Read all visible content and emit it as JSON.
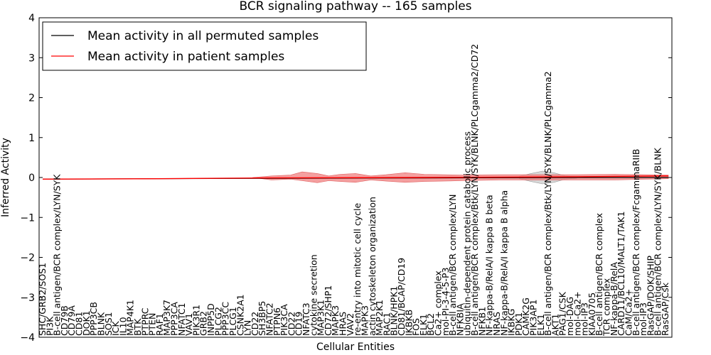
{
  "chart_data": {
    "type": "line",
    "title": "BCR signaling pathway -- 165 samples",
    "xlabel": "Cellular Entities",
    "ylabel": "Inferred Activity",
    "ylim": [
      -4,
      4
    ],
    "yticks": [
      -4,
      -3,
      -2,
      -1,
      0,
      1,
      2,
      3,
      4
    ],
    "ytick_labels": [
      "−4",
      "−3",
      "−2",
      "−1",
      "0",
      "1",
      "2",
      "3",
      "4"
    ],
    "xlim": [
      0,
      164
    ],
    "legend_position": "top-left",
    "series": [
      {
        "name": "Mean activity in all permuted samples",
        "color": "#000000",
        "values": [
          -0.04,
          -0.03,
          -0.02,
          -0.01,
          0.0,
          0.0
        ]
      },
      {
        "name": "Mean activity in patient samples",
        "color": "#ff0000",
        "values": [
          -0.04,
          -0.03,
          -0.01,
          0.0,
          0.02,
          0.04
        ]
      }
    ],
    "series_x": [
      0,
      30,
      60,
      100,
      140,
      164
    ],
    "band_patient": {
      "color": "#f08080",
      "x": [
        55,
        60,
        65,
        68,
        72,
        75,
        78,
        82,
        86,
        90,
        95,
        100,
        110,
        120,
        130,
        140,
        150,
        164
      ],
      "high": [
        0.0,
        0.04,
        0.06,
        0.14,
        0.1,
        0.04,
        0.08,
        0.1,
        0.04,
        0.07,
        0.12,
        0.08,
        0.06,
        0.07,
        0.07,
        0.07,
        0.08,
        0.06
      ],
      "low": [
        0.0,
        -0.06,
        -0.04,
        -0.08,
        -0.13,
        -0.08,
        -0.1,
        -0.12,
        -0.06,
        -0.09,
        -0.12,
        -0.1,
        -0.08,
        -0.06,
        -0.06,
        -0.06,
        -0.06,
        -0.03
      ]
    },
    "band_permuted": {
      "color": "#c8c8c8",
      "x": [
        125,
        128,
        131,
        134,
        137,
        140
      ],
      "high": [
        0.03,
        0.1,
        0.16,
        0.12,
        0.04,
        0.02
      ],
      "low": [
        -0.03,
        -0.1,
        -0.16,
        -0.12,
        -0.04,
        -0.02
      ]
    },
    "tick_labels": [
      {
        "x": 0,
        "label": "SHC/GRB2/SOS1"
      },
      {
        "x": 2,
        "label": "PI3K"
      },
      {
        "x": 4,
        "label": "B-cell antigen/BCR complex/LYN/SYK"
      },
      {
        "x": 7,
        "label": "CD79B"
      },
      {
        "x": 9,
        "label": "CD79A"
      },
      {
        "x": 11,
        "label": "CD81"
      },
      {
        "x": 13,
        "label": "DOK1"
      },
      {
        "x": 15,
        "label": "PPP3CB"
      },
      {
        "x": 17,
        "label": "BLNK"
      },
      {
        "x": 19,
        "label": "SOS1"
      },
      {
        "x": 21,
        "label": "ICK"
      },
      {
        "x": 23,
        "label": "IL10"
      },
      {
        "x": 25,
        "label": "MAP4K1"
      },
      {
        "x": 27,
        "label": "BTK"
      },
      {
        "x": 29,
        "label": "PTPRC"
      },
      {
        "x": 31,
        "label": "PTEN"
      },
      {
        "x": 33,
        "label": "RAF1"
      },
      {
        "x": 35,
        "label": "MAP3K7"
      },
      {
        "x": 37,
        "label": "PPP3CA"
      },
      {
        "x": 39,
        "label": "NFATC1"
      },
      {
        "x": 41,
        "label": "VAV1"
      },
      {
        "x": 43,
        "label": "PIK3R1"
      },
      {
        "x": 45,
        "label": "GRB2"
      },
      {
        "x": 47,
        "label": "INPP5D"
      },
      {
        "x": 49,
        "label": "PLCG2"
      },
      {
        "x": 51,
        "label": "PPP3CC"
      },
      {
        "x": 53,
        "label": "PLCG1"
      },
      {
        "x": 55,
        "label": "CSNK2A1"
      },
      {
        "x": 57,
        "label": "LYN"
      },
      {
        "x": 59,
        "label": "CD22"
      },
      {
        "x": 61,
        "label": "SH3BP5"
      },
      {
        "x": 63,
        "label": "NFATC2"
      },
      {
        "x": 65,
        "label": "PTPN6"
      },
      {
        "x": 67,
        "label": "PIK3CA"
      },
      {
        "x": 69,
        "label": "CD22"
      },
      {
        "x": 71,
        "label": "CD19"
      },
      {
        "x": 73,
        "label": "NFATC3"
      },
      {
        "x": 75,
        "label": "cytokine secretion"
      },
      {
        "x": 77,
        "label": "MAP3K1"
      },
      {
        "x": 79,
        "label": "CD72/SHP1"
      },
      {
        "x": 81,
        "label": "MAPK3"
      },
      {
        "x": 83,
        "label": "HRAS"
      },
      {
        "x": 85,
        "label": "VAV2"
      },
      {
        "x": 87,
        "label": "re-entry into mitotic cell cycle"
      },
      {
        "x": 89,
        "label": "MAPK3"
      },
      {
        "x": 91,
        "label": "actin cytoskeleton organization"
      },
      {
        "x": 93,
        "label": "MAP2K1"
      },
      {
        "x": 95,
        "label": "RAC1"
      },
      {
        "x": 97,
        "label": "BLNK/HPK1"
      },
      {
        "x": 99,
        "label": "CD81/BCAP/CD19"
      },
      {
        "x": 101,
        "label": "IKBKB"
      },
      {
        "x": 103,
        "label": "FOS"
      },
      {
        "x": 105,
        "label": "ELK1"
      },
      {
        "x": 107,
        "label": "BCL2"
      },
      {
        "x": 109,
        "label": "Ca2+ complex"
      },
      {
        "x": 111,
        "label": "mol-PI-3-4-5-P3"
      },
      {
        "x": 113,
        "label": "B-cell antigen/BCR complex/LYN"
      },
      {
        "x": 115,
        "label": "NFKBIA"
      },
      {
        "x": 117,
        "label": "ubiquitin-dependent protein catabolic process"
      },
      {
        "x": 119,
        "label": "B-cell antigen/BCR complex/Btk/LYN/SYK/BLNK/PLCgamma2/CD72"
      },
      {
        "x": 121,
        "label": "NFKB1"
      },
      {
        "x": 123,
        "label": "NF-kappa-B/RelA/I kappa B beta"
      },
      {
        "x": 125,
        "label": "NRAS"
      },
      {
        "x": 127,
        "label": "NF-kappa-B/RelA/I kappa B alpha"
      },
      {
        "x": 129,
        "label": "IKBKG"
      },
      {
        "x": 131,
        "label": "PDK1"
      },
      {
        "x": 133,
        "label": "CAMK2G"
      },
      {
        "x": 135,
        "label": "PIK3AP1"
      },
      {
        "x": 137,
        "label": "ELK1"
      },
      {
        "x": 139,
        "label": "B-cell antigen/BCR complex/Btk/LYN/SYK/BLNK/PLCgamma2"
      },
      {
        "x": 141,
        "label": "AKT1"
      },
      {
        "x": 143,
        "label": "PAG1/CSK"
      },
      {
        "x": 145,
        "label": "mol-DAG"
      },
      {
        "x": 147,
        "label": "mol-Ca2+"
      },
      {
        "x": 149,
        "label": "mol-IP3"
      },
      {
        "x": 151,
        "label": "KIAA0705"
      },
      {
        "x": 153,
        "label": "B-cell antigen/BCR complex"
      },
      {
        "x": 155,
        "label": "TCR complex"
      },
      {
        "x": 157,
        "label": "NF-kappa-B/RelA"
      },
      {
        "x": 159,
        "label": "CARD11/BCL10/MALT1/TAK1"
      },
      {
        "x": 161,
        "label": "CaM/Ca2+"
      },
      {
        "x": 163,
        "label": "B-cell antigen/BCR complex/FcgammaRIIB"
      },
      {
        "x": 165,
        "label": "mol-IP3"
      },
      {
        "x": 167,
        "label": "RasGAP/DOK/SHIP"
      },
      {
        "x": 169,
        "label": "B-cell antigen/BCR complex/LYN/SYK/BLNK"
      },
      {
        "x": 171,
        "label": "RasGAP/Csk"
      }
    ]
  }
}
